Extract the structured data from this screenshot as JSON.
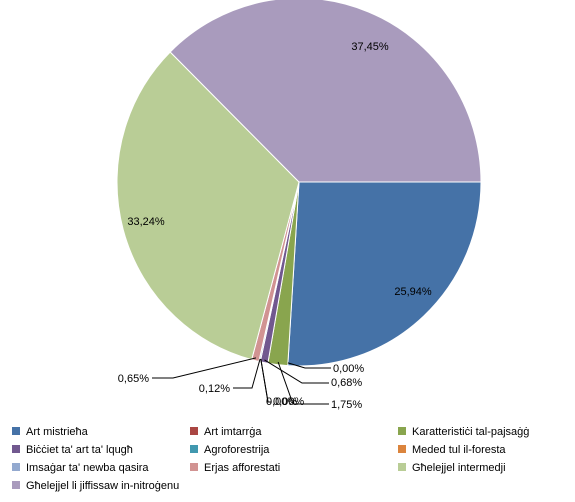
{
  "chart_data": {
    "type": "pie",
    "title": "",
    "categories": [
      "Art mistrieħa",
      "Art imtarrġa",
      "Karatteristiċi tal-pajsaġġ",
      "Biċċiet ta' art ta' lqugħ",
      "Agroforestrija",
      "Meded tul il-foresta",
      "Imsaġar ta' newba qasira",
      "Erjas afforestati",
      "Għelejjel intermedji",
      "Għelejjel li jiffissaw in-nitroġenu"
    ],
    "values": [
      25.94,
      0.0,
      1.75,
      0.68,
      0.0,
      0.0,
      0.12,
      0.65,
      33.24,
      37.45
    ],
    "labels": [
      "25,94%",
      "0,00%",
      "1,75%",
      "0,68%",
      "0,00%",
      "0,00%",
      "0,12%",
      "0,65%",
      "33,24%",
      "37,45%"
    ],
    "colors": [
      "#4572A7",
      "#AA4643",
      "#89A54E",
      "#71588F",
      "#4198AF",
      "#DB843D",
      "#93A9CF",
      "#D19392",
      "#B9CD96",
      "#A99BBD"
    ],
    "start_angle_deg": 90,
    "direction": "clockwise",
    "legend_position": "bottom"
  }
}
